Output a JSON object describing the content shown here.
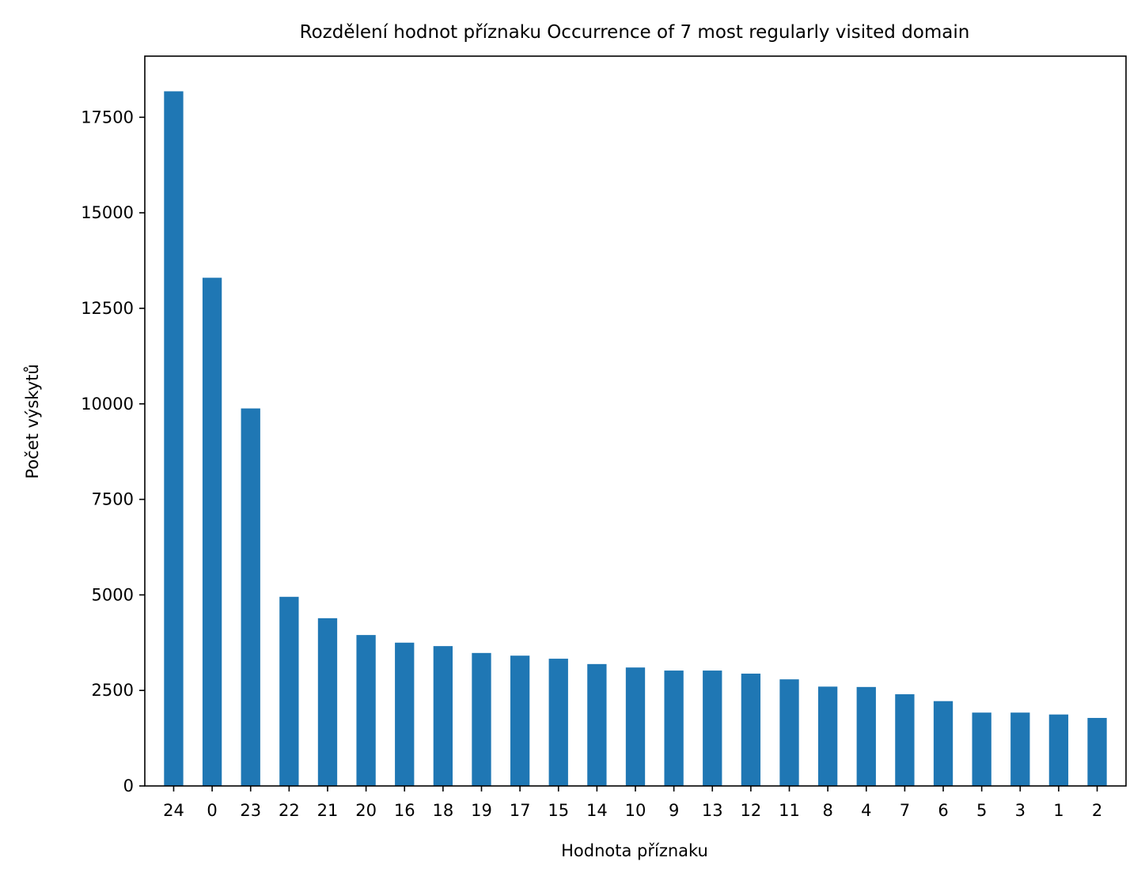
{
  "chart_data": {
    "type": "bar",
    "title": "Rozdělení hodnot příznaku  Occurrence of 7 most regularly visited domain",
    "xlabel": "Hodnota příznaku",
    "ylabel": "Počet výskytů",
    "categories": [
      "24",
      "0",
      "23",
      "22",
      "21",
      "20",
      "16",
      "18",
      "19",
      "17",
      "15",
      "14",
      "10",
      "9",
      "13",
      "12",
      "11",
      "8",
      "4",
      "7",
      "6",
      "5",
      "3",
      "1",
      "2"
    ],
    "values": [
      18180,
      13300,
      9880,
      4950,
      4390,
      3950,
      3750,
      3660,
      3480,
      3410,
      3330,
      3190,
      3100,
      3020,
      3020,
      2940,
      2790,
      2600,
      2590,
      2400,
      2220,
      1920,
      1920,
      1870,
      1780
    ],
    "ylim": [
      0,
      19100
    ],
    "yticks": [
      0,
      2500,
      5000,
      7500,
      10000,
      12500,
      15000,
      17500
    ],
    "bar_color": "#1f77b4",
    "grid": false,
    "legend": "none"
  }
}
